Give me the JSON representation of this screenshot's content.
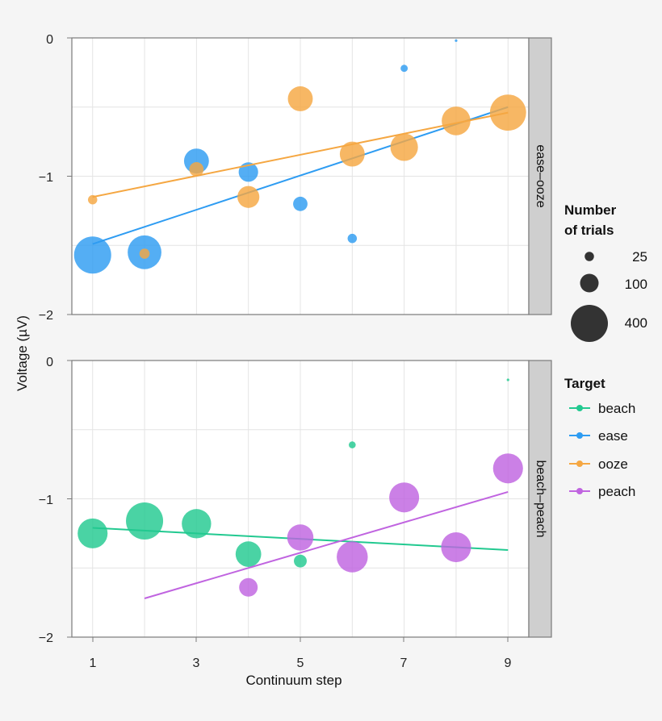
{
  "chart_data": {
    "type": "scatter",
    "xlabel": "Continuum step",
    "ylabel": "Voltage (µV)",
    "x_ticks": [
      "1",
      "3",
      "5",
      "7",
      "9"
    ],
    "y_ticks": [
      "0",
      "−1",
      "−2"
    ],
    "xlim": [
      0.6,
      9.4
    ],
    "ylim": [
      -2,
      0
    ],
    "panels": [
      {
        "label": "ease–ooze",
        "series": [
          {
            "name": "ease",
            "color": "#2e9cf2",
            "points": [
              {
                "x": 1,
                "y": -1.57,
                "n": 400
              },
              {
                "x": 2,
                "y": -1.55,
                "n": 330
              },
              {
                "x": 3,
                "y": -0.89,
                "n": 180
              },
              {
                "x": 4,
                "y": -0.97,
                "n": 110
              },
              {
                "x": 5,
                "y": -1.2,
                "n": 60
              },
              {
                "x": 6,
                "y": -1.45,
                "n": 25
              },
              {
                "x": 7,
                "y": -0.22,
                "n": 15
              },
              {
                "x": 8,
                "y": -0.02,
                "n": 2
              }
            ],
            "fit": {
              "x": [
                1,
                9
              ],
              "y": [
                -1.49,
                -0.5
              ]
            }
          },
          {
            "name": "ooze",
            "color": "#f5a742",
            "points": [
              {
                "x": 1,
                "y": -1.17,
                "n": 25
              },
              {
                "x": 2,
                "y": -1.56,
                "n": 30
              },
              {
                "x": 3,
                "y": -0.95,
                "n": 60
              },
              {
                "x": 4,
                "y": -1.15,
                "n": 140
              },
              {
                "x": 5,
                "y": -0.44,
                "n": 180
              },
              {
                "x": 6,
                "y": -0.84,
                "n": 180
              },
              {
                "x": 7,
                "y": -0.79,
                "n": 220
              },
              {
                "x": 8,
                "y": -0.6,
                "n": 240
              },
              {
                "x": 9,
                "y": -0.54,
                "n": 380
              }
            ],
            "fit": {
              "x": [
                1,
                9
              ],
              "y": [
                -1.15,
                -0.54
              ]
            }
          }
        ]
      },
      {
        "label": "beach–peach",
        "series": [
          {
            "name": "beach",
            "color": "#22c990",
            "points": [
              {
                "x": 1,
                "y": -1.25,
                "n": 260
              },
              {
                "x": 2,
                "y": -1.16,
                "n": 400
              },
              {
                "x": 3,
                "y": -1.18,
                "n": 250
              },
              {
                "x": 4,
                "y": -1.4,
                "n": 190
              },
              {
                "x": 5,
                "y": -1.45,
                "n": 48
              },
              {
                "x": 6,
                "y": -0.61,
                "n": 14
              },
              {
                "x": 9,
                "y": -0.14,
                "n": 2
              }
            ],
            "fit": {
              "x": [
                1,
                9
              ],
              "y": [
                -1.21,
                -1.37
              ]
            }
          },
          {
            "name": "peach",
            "color": "#c064e0",
            "points": [
              {
                "x": 4,
                "y": -1.64,
                "n": 100
              },
              {
                "x": 5,
                "y": -1.28,
                "n": 200
              },
              {
                "x": 6,
                "y": -1.42,
                "n": 280
              },
              {
                "x": 7,
                "y": -0.99,
                "n": 260
              },
              {
                "x": 8,
                "y": -1.35,
                "n": 260
              },
              {
                "x": 9,
                "y": -0.78,
                "n": 260
              }
            ],
            "fit": {
              "x": [
                2,
                9
              ],
              "y": [
                -1.72,
                -0.95
              ]
            }
          }
        ]
      }
    ],
    "legend_size": {
      "title_line1": "Number",
      "title_line2": "of trials",
      "entries": [
        {
          "label": "25",
          "n": 25
        },
        {
          "label": "100",
          "n": 100
        },
        {
          "label": "400",
          "n": 400
        }
      ]
    },
    "legend_color": {
      "title": "Target",
      "entries": [
        {
          "label": "beach",
          "color": "#22c990"
        },
        {
          "label": "ease",
          "color": "#2e9cf2"
        },
        {
          "label": "ooze",
          "color": "#f5a742"
        },
        {
          "label": "peach",
          "color": "#c064e0"
        }
      ]
    }
  }
}
